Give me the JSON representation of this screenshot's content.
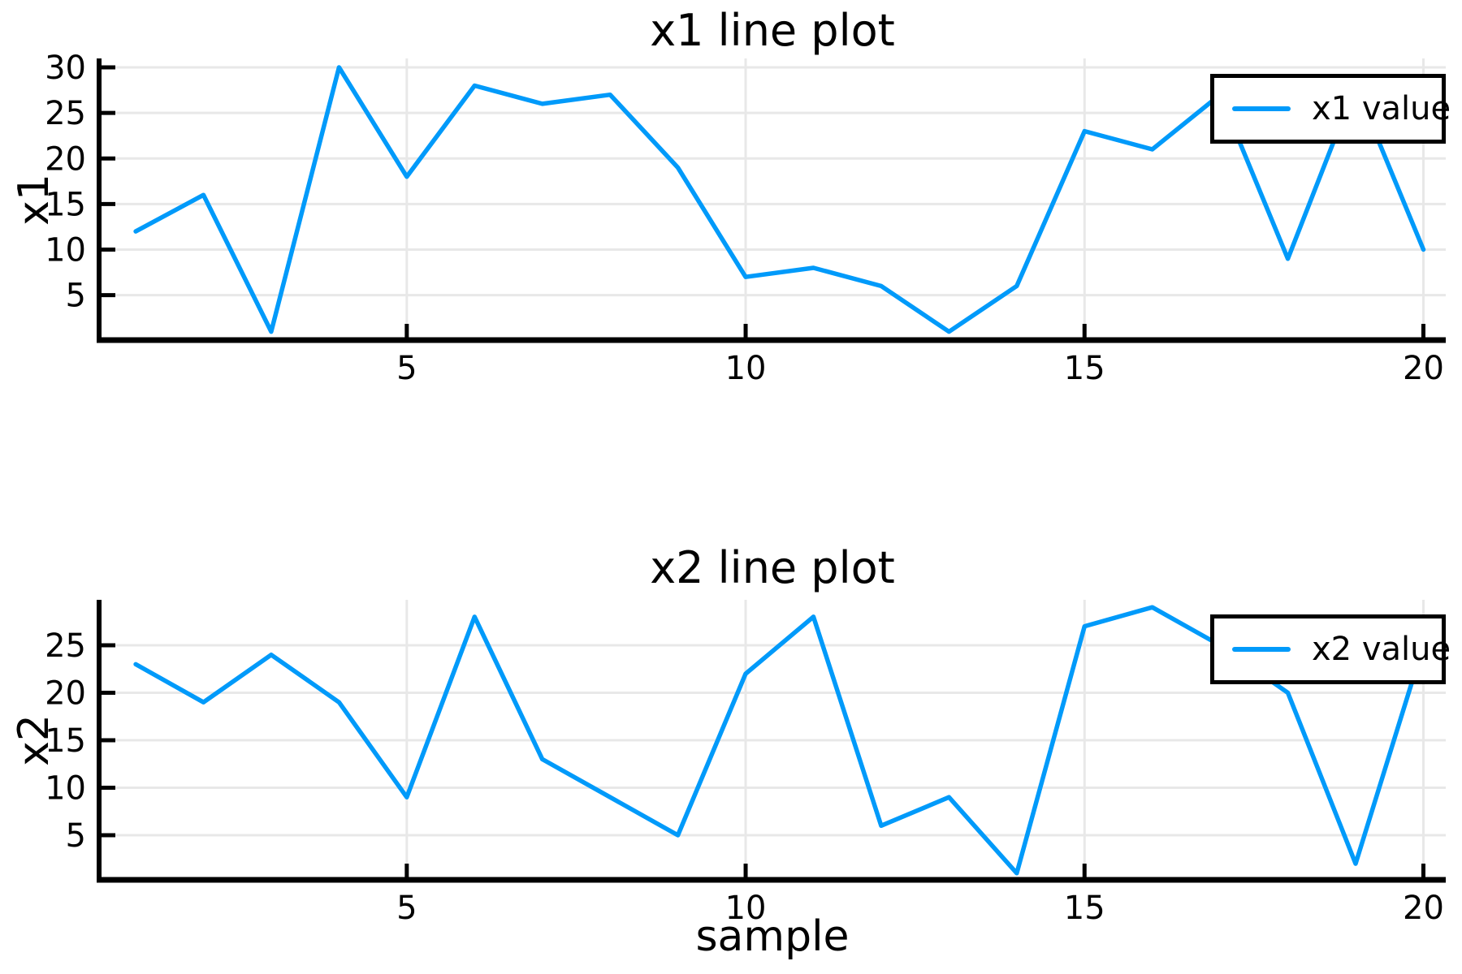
{
  "figure": {
    "background": "#ffffff",
    "series_color": "#009AFA",
    "grid_color": "#E8E8E8",
    "axis_color": "#000000",
    "text_color": "#000000"
  },
  "chart_data": [
    {
      "type": "line",
      "title": "x1 line plot",
      "ylabel": "x1",
      "xlabel": "",
      "legend_label": "x1 value",
      "legend_position": "top-right",
      "grid": true,
      "x": [
        1,
        2,
        3,
        4,
        5,
        6,
        7,
        8,
        9,
        10,
        11,
        12,
        13,
        14,
        15,
        16,
        17,
        18,
        19,
        20
      ],
      "values": [
        12,
        16,
        1,
        30,
        18,
        28,
        26,
        27,
        19,
        7,
        8,
        6,
        1,
        6,
        23,
        21,
        27,
        9,
        28,
        10
      ],
      "xticks": [
        5,
        10,
        15,
        20
      ],
      "yticks": [
        5,
        10,
        15,
        20,
        25,
        30
      ],
      "xlim": [
        0.46,
        20.33
      ],
      "ylim": [
        0.07,
        30.98
      ]
    },
    {
      "type": "line",
      "title": "x2 line plot",
      "ylabel": "x2",
      "xlabel": "sample",
      "legend_label": "x2 value",
      "legend_position": "top-right",
      "grid": true,
      "x": [
        1,
        2,
        3,
        4,
        5,
        6,
        7,
        8,
        9,
        10,
        11,
        12,
        13,
        14,
        15,
        16,
        17,
        18,
        19,
        20
      ],
      "values": [
        23,
        19,
        24,
        19,
        9,
        28,
        13,
        9,
        5,
        22,
        28,
        6,
        9,
        1,
        27,
        29,
        25,
        20,
        2,
        25
      ],
      "xticks": [
        5,
        10,
        15,
        20
      ],
      "yticks": [
        5,
        10,
        15,
        20,
        25
      ],
      "xlim": [
        0.46,
        20.33
      ],
      "ylim": [
        0.3,
        29.79
      ]
    }
  ]
}
